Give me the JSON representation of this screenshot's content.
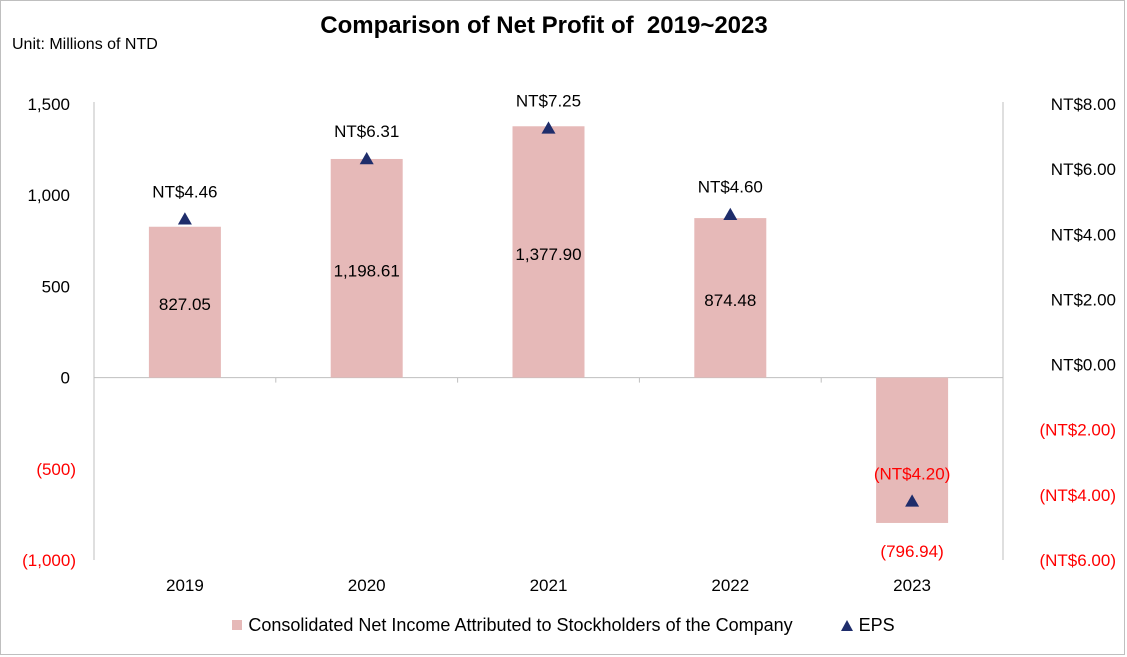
{
  "chart_data": {
    "type": "bar",
    "title": "Comparison of Net Profit of  2019~2023",
    "unit_label": "Unit: Millions of NTD",
    "categories": [
      "2019",
      "2020",
      "2021",
      "2022",
      "2023"
    ],
    "series": [
      {
        "name": "Consolidated Net Income Attributed to Stockholders of the Company",
        "type": "bar",
        "axis": "left",
        "values": [
          827.05,
          1198.61,
          1377.9,
          874.48,
          -796.94
        ],
        "labels": [
          "827.05",
          "1,198.61",
          "1,377.90",
          "874.48",
          "(796.94)"
        ]
      },
      {
        "name": "EPS",
        "type": "scatter",
        "marker": "triangle",
        "axis": "right",
        "values": [
          4.46,
          6.31,
          7.25,
          4.6,
          -4.2
        ],
        "labels": [
          "NT$4.46",
          "NT$6.31",
          "NT$7.25",
          "NT$4.60",
          "(NT$4.20)"
        ]
      }
    ],
    "left_axis": {
      "ylim": [
        -1000,
        1500
      ],
      "ticks": [
        1500,
        1000,
        500,
        0,
        -500,
        -1000
      ],
      "tick_labels": [
        "1,500",
        "1,000",
        "500",
        "0",
        "(500)",
        "(1,000)"
      ]
    },
    "right_axis": {
      "ylim": [
        -6,
        8
      ],
      "ticks": [
        8,
        6,
        4,
        2,
        0,
        -2,
        -4,
        -6
      ],
      "tick_labels": [
        "NT$8.00",
        "NT$6.00",
        "NT$4.00",
        "NT$2.00",
        "NT$0.00",
        "(NT$2.00)",
        "(NT$4.00)",
        "(NT$6.00)"
      ]
    },
    "grid": false,
    "legend_position": "bottom",
    "colors": {
      "bar": "#e6b9b8",
      "marker": "#1f2d6b",
      "negative_text": "#ff0000",
      "text": "#000000",
      "axis": "#bfbfbf"
    }
  }
}
